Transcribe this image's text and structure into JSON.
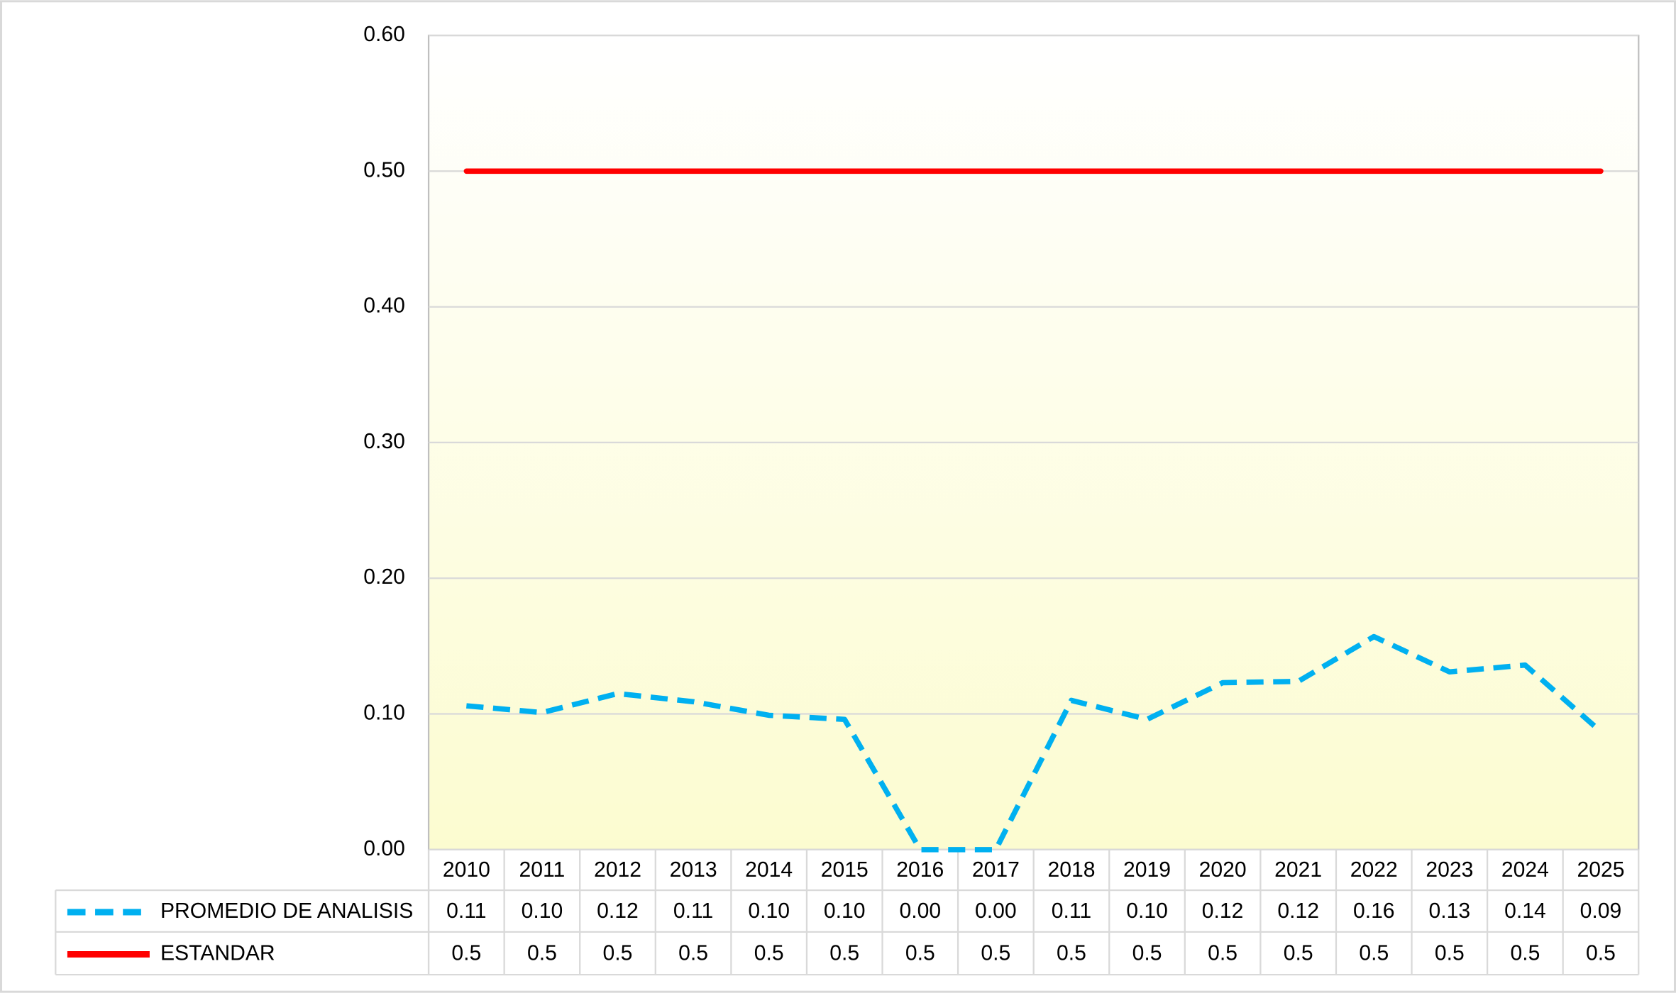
{
  "chart_data": {
    "type": "line",
    "categories": [
      "2010",
      "2011",
      "2012",
      "2013",
      "2014",
      "2015",
      "2016",
      "2017",
      "2018",
      "2019",
      "2020",
      "2021",
      "2022",
      "2023",
      "2024",
      "2025"
    ],
    "series": [
      {
        "name": "PROMEDIO DE ANALISIS",
        "color": "#00b0f0",
        "dashed": true,
        "values": [
          0.106,
          0.101,
          0.115,
          0.109,
          0.099,
          0.096,
          0,
          0,
          0.11,
          0.096,
          0.123,
          0.124,
          0.157,
          0.131,
          0.136,
          0.087
        ],
        "value_labels": [
          "0.11",
          "0.10",
          "0.12",
          "0.11",
          "0.10",
          "0.10",
          "0.00",
          "0.00",
          "0.11",
          "0.10",
          "0.12",
          "0.12",
          "0.16",
          "0.13",
          "0.14",
          "0.09"
        ]
      },
      {
        "name": "ESTANDAR",
        "color": "#ff0000",
        "dashed": false,
        "values": [
          0.5,
          0.5,
          0.5,
          0.5,
          0.5,
          0.5,
          0.5,
          0.5,
          0.5,
          0.5,
          0.5,
          0.5,
          0.5,
          0.5,
          0.5,
          0.5
        ]
      }
    ],
    "ylim": [
      0,
      0.6
    ],
    "yticks": [
      {
        "value": 0,
        "label": "0.00"
      },
      {
        "value": 0.1,
        "label": "0.10"
      },
      {
        "value": 0.2,
        "label": "0.20"
      },
      {
        "value": 0.3,
        "label": "0.30"
      },
      {
        "value": 0.4,
        "label": "0.40"
      },
      {
        "value": 0.5,
        "label": "0.50"
      },
      {
        "value": 0.6,
        "label": "0.60"
      }
    ],
    "grid": true,
    "data_table": true
  }
}
